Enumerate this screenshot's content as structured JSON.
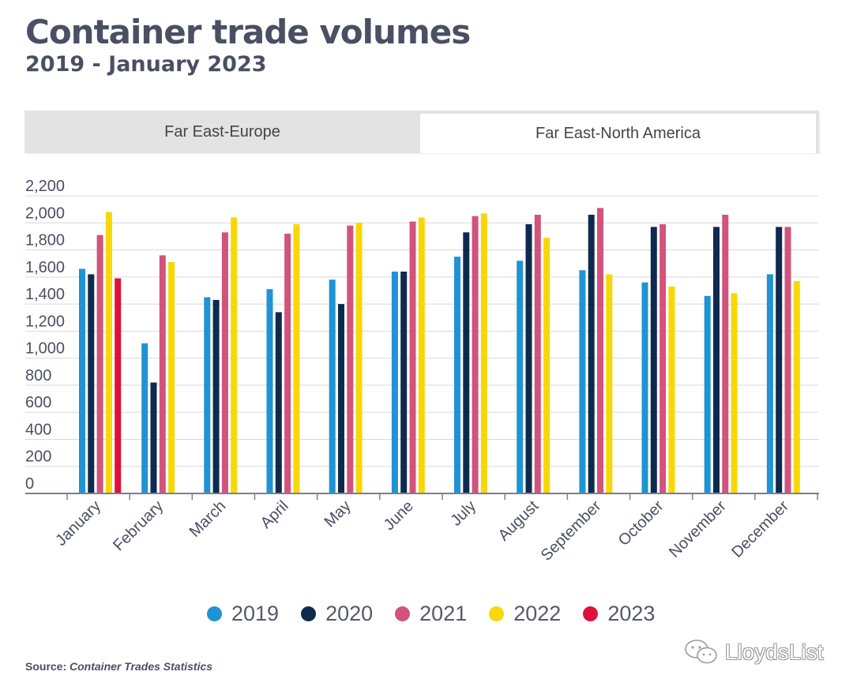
{
  "title": "Container trade volumes",
  "subtitle": "2019 - January 2023",
  "tabs": [
    {
      "label": "Far East-Europe",
      "active": false
    },
    {
      "label": "Far East-North America",
      "active": true
    }
  ],
  "source": {
    "label": "Source:",
    "value": "Container Trades Statistics"
  },
  "watermark": "LloydsList",
  "colors": {
    "2019": "#1f93d3",
    "2020": "#0e2a4f",
    "2021": "#d2537c",
    "2022": "#f8d706",
    "2023": "#e0103b"
  },
  "chart_data": {
    "type": "bar",
    "categories": [
      "January",
      "February",
      "March",
      "April",
      "May",
      "June",
      "July",
      "August",
      "September",
      "October",
      "November",
      "December"
    ],
    "series": [
      {
        "name": "2019",
        "values": [
          1660,
          1110,
          1450,
          1510,
          1580,
          1640,
          1750,
          1720,
          1650,
          1560,
          1460,
          1620
        ]
      },
      {
        "name": "2020",
        "values": [
          1620,
          820,
          1430,
          1340,
          1400,
          1640,
          1930,
          1990,
          2060,
          1970,
          1970,
          1970
        ]
      },
      {
        "name": "2021",
        "values": [
          1910,
          1760,
          1930,
          1920,
          1980,
          2010,
          2050,
          2060,
          2110,
          1990,
          2060,
          1970
        ]
      },
      {
        "name": "2022",
        "values": [
          2080,
          1710,
          2040,
          1990,
          2000,
          2040,
          2070,
          1890,
          1620,
          1530,
          1480,
          1570
        ]
      },
      {
        "name": "2023",
        "values": [
          1590,
          null,
          null,
          null,
          null,
          null,
          null,
          null,
          null,
          null,
          null,
          null
        ]
      }
    ],
    "ylim": [
      0,
      2200
    ],
    "yticks": [
      0,
      200,
      400,
      600,
      800,
      1000,
      1200,
      1400,
      1600,
      1800,
      2000,
      2200
    ],
    "ytick_labels": [
      "0",
      "200",
      "400",
      "600",
      "800",
      "1,000",
      "1,200",
      "1,400",
      "1,600",
      "1,800",
      "2,000",
      "2,200"
    ],
    "grid": true,
    "legend_position": "bottom"
  }
}
